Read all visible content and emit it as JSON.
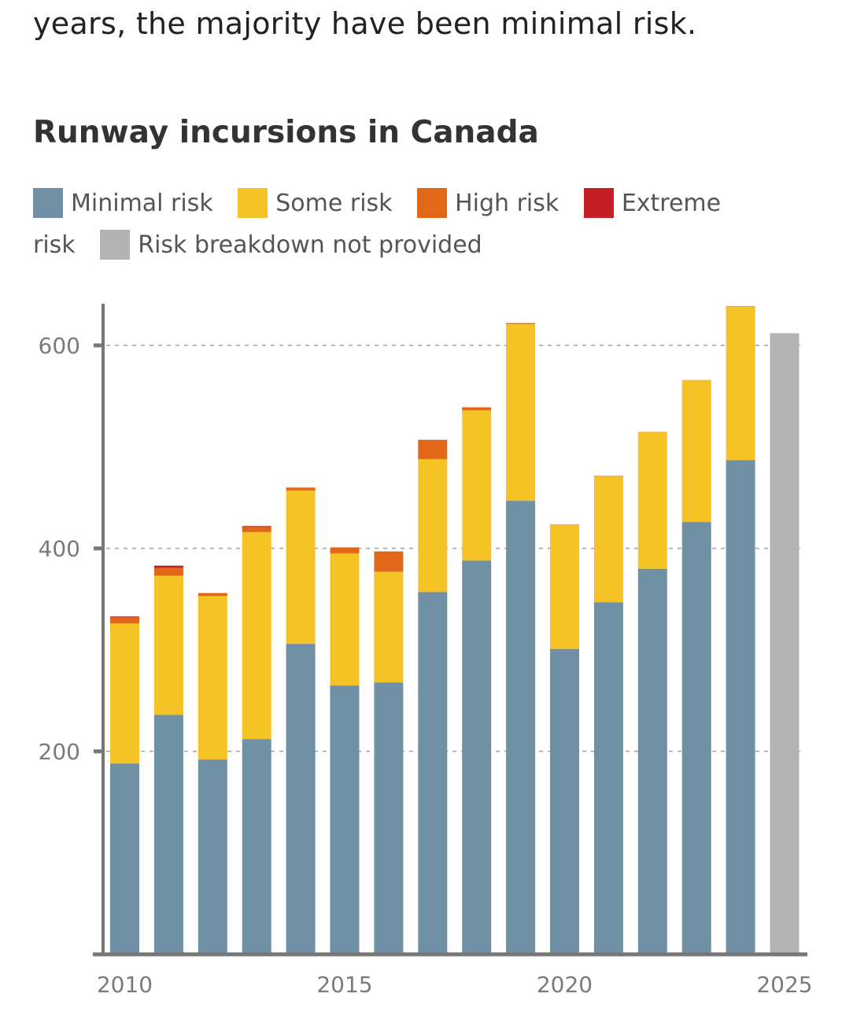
{
  "intro_text": "years, the majority have been minimal risk.",
  "chart_data": {
    "type": "bar",
    "stacked": true,
    "title": "Runway incursions in Canada",
    "xlabel": "",
    "ylabel": "",
    "ylim": [
      0,
      640
    ],
    "yticks": [
      200,
      400,
      600
    ],
    "xtick_labels": [
      "2010",
      "2015",
      "2020",
      "2025"
    ],
    "grid": "horizontal dotted",
    "legend_placement": "top",
    "categories": [
      "2010",
      "2011",
      "2012",
      "2013",
      "2014",
      "2015",
      "2016",
      "2017",
      "2018",
      "2019",
      "2020",
      "2021",
      "2022",
      "2023",
      "2024",
      "2025"
    ],
    "series": [
      {
        "name": "Minimal risk",
        "color": "#7090a6",
        "values": [
          188,
          236,
          192,
          212,
          306,
          265,
          268,
          357,
          388,
          447,
          301,
          347,
          380,
          426,
          487,
          0
        ]
      },
      {
        "name": "Some risk",
        "color": "#f5c326",
        "values": [
          138,
          137,
          161,
          204,
          151,
          130,
          109,
          131,
          148,
          174,
          122,
          124,
          135,
          140,
          151,
          0
        ]
      },
      {
        "name": "High risk",
        "color": "#e06818",
        "values": [
          6,
          8,
          3,
          5,
          3,
          6,
          20,
          19,
          3,
          1,
          0.5,
          0.5,
          0,
          0,
          0.5,
          0
        ]
      },
      {
        "name": "Extreme risk",
        "color": "#c42026",
        "values": [
          1,
          2,
          0,
          1,
          0,
          0,
          0,
          0,
          0,
          0,
          0,
          0,
          0,
          0,
          0,
          0
        ]
      },
      {
        "name": "Risk breakdown not provided",
        "color": "#b3b3b3",
        "values": [
          0,
          0,
          0,
          0,
          0,
          0,
          0,
          0,
          0,
          0,
          0,
          0,
          0,
          0,
          0,
          612
        ]
      }
    ]
  }
}
